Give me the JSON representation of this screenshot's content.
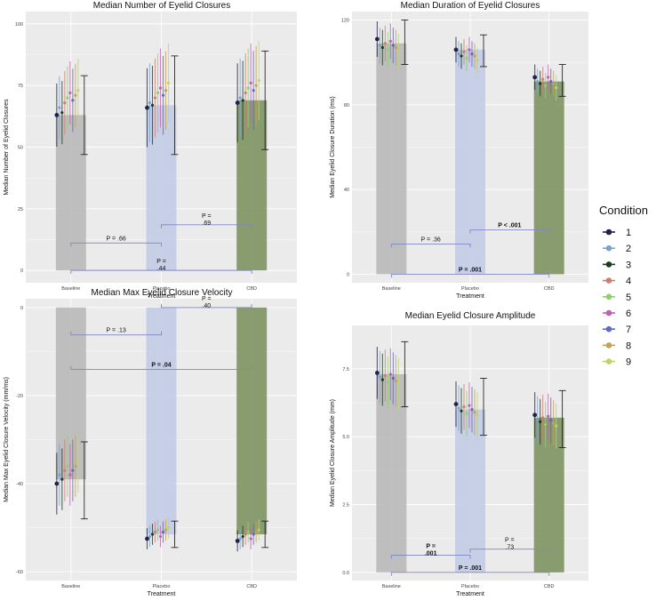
{
  "chart_data": [
    {
      "type": "bar",
      "title": "Median Number of Eyelid Closures",
      "xlabel": "Treatment",
      "ylabel": "Median Number of Eyelid Closures",
      "ylim": [
        -5,
        105
      ],
      "yticks": [
        0,
        25,
        50,
        75,
        100
      ],
      "categories": [
        "Baseline",
        "Placebo",
        "CBD"
      ],
      "values": [
        63,
        67,
        69
      ],
      "errors": [
        [
          47,
          79
        ],
        [
          47,
          87
        ],
        [
          49,
          89
        ]
      ],
      "bar_colors": [
        "#b9b9b9",
        "#c3cce6",
        "#7d9462"
      ],
      "condition_means": [
        [
          63,
          66,
          64,
          68,
          70,
          72,
          69,
          71,
          73
        ],
        [
          66,
          68,
          67,
          70,
          72,
          74,
          71,
          73,
          76
        ],
        [
          68,
          70,
          69,
          72,
          74,
          76,
          73,
          75,
          77
        ]
      ],
      "comparisons": [
        {
          "from": 0,
          "to": 1,
          "label": "P = .66",
          "bold": false,
          "level": 1
        },
        {
          "from": 1,
          "to": 2,
          "label": "P =\n.69",
          "bold": false,
          "level": 2
        },
        {
          "from": 0,
          "to": 2,
          "label": "P =\n.44",
          "bold": false,
          "level": 0
        }
      ]
    },
    {
      "type": "bar",
      "title": "Median Duration of Eyelid Closures",
      "xlabel": "Treatment",
      "ylabel": "Median Eyelid Closure Duration (ms)",
      "ylim": [
        -4,
        124
      ],
      "yticks": [
        0,
        40,
        80,
        120
      ],
      "categories": [
        "Baseline",
        "Placebo",
        "CBD"
      ],
      "values": [
        109,
        106,
        91
      ],
      "errors": [
        [
          99,
          120
        ],
        [
          98,
          113
        ],
        [
          84,
          99
        ]
      ],
      "bar_colors": [
        "#b9b9b9",
        "#c3cce6",
        "#7d9462"
      ],
      "condition_means": [
        [
          111,
          108,
          107,
          109,
          106,
          110,
          108,
          107,
          105
        ],
        [
          106,
          104,
          103,
          105,
          102,
          106,
          104,
          103,
          101
        ],
        [
          93,
          91,
          90,
          92,
          89,
          93,
          91,
          90,
          88
        ]
      ],
      "comparisons": [
        {
          "from": 0,
          "to": 1,
          "label": "P = .36",
          "bold": false,
          "level": 1
        },
        {
          "from": 1,
          "to": 2,
          "label": "P < .001",
          "bold": true,
          "level": 2
        },
        {
          "from": 0,
          "to": 2,
          "label": "P = .001",
          "bold": true,
          "level": 0
        }
      ]
    },
    {
      "type": "bar",
      "title": "Median Max Eyelid Closure Velocity",
      "xlabel": "Treatment",
      "ylabel": "Median Max Eyelid Closure Velocity (mm/ms)",
      "ylim": [
        -62,
        2
      ],
      "yticks": [
        0,
        -20,
        -40,
        -60
      ],
      "categories": [
        "Baseline",
        "Placebo",
        "CBD"
      ],
      "values": [
        -39,
        -51.5,
        -51.5
      ],
      "errors": [
        [
          -48,
          -30.5
        ],
        [
          -54.5,
          -48.5
        ],
        [
          -54.5,
          -48.5
        ]
      ],
      "bar_colors": [
        "#b9b9b9",
        "#c3cce6",
        "#7d9462"
      ],
      "condition_means": [
        [
          -40,
          -38,
          -39,
          -37,
          -36,
          -38,
          -37,
          -36,
          -35
        ],
        [
          -52.5,
          -52,
          -51.5,
          -51,
          -50.5,
          -52,
          -51,
          -50.5,
          -50
        ],
        [
          -53,
          -52.5,
          -52,
          -51.5,
          -51,
          -52.5,
          -51.5,
          -51,
          -50.5
        ]
      ],
      "comparisons": [
        {
          "from": 0,
          "to": 1,
          "label": "P = .13",
          "bold": false,
          "level": 1
        },
        {
          "from": 1,
          "to": 2,
          "label": "P =\n.40",
          "bold": false,
          "level": 2
        },
        {
          "from": 0,
          "to": 2,
          "label": "P = .04",
          "bold": true,
          "level": 0
        }
      ]
    },
    {
      "type": "bar",
      "title": "Median Eyelid Closure Amplitude",
      "xlabel": "Treatment",
      "ylabel": "Median Eyelid Closure Amplitude (mm)",
      "ylim": [
        -0.3,
        9.1
      ],
      "yticks": [
        0.0,
        2.5,
        5.0,
        7.5
      ],
      "tick_labels": [
        "0.0",
        "2.5",
        "5.0",
        "7.5"
      ],
      "categories": [
        "Baseline",
        "Placebo",
        "CBD"
      ],
      "values": [
        7.3,
        6.0,
        5.7
      ],
      "errors": [
        [
          6.1,
          8.5
        ],
        [
          5.05,
          7.15
        ],
        [
          4.6,
          6.7
        ]
      ],
      "bar_colors": [
        "#b9b9b9",
        "#c3cce6",
        "#7d9462"
      ],
      "condition_means": [
        [
          7.35,
          7.2,
          7.1,
          7.25,
          7.0,
          7.3,
          7.15,
          7.05,
          6.95
        ],
        [
          6.2,
          6.05,
          5.95,
          6.1,
          5.85,
          6.15,
          6.0,
          5.9,
          5.8
        ],
        [
          5.8,
          5.65,
          5.55,
          5.7,
          5.45,
          5.75,
          5.6,
          5.5,
          5.4
        ]
      ],
      "comparisons": [
        {
          "from": 0,
          "to": 1,
          "label": "P =\n.001",
          "bold": true,
          "level": 1
        },
        {
          "from": 1,
          "to": 2,
          "label": "P =\n.73",
          "bold": false,
          "level": 2
        },
        {
          "from": 0,
          "to": 2,
          "label": "P = .001",
          "bold": true,
          "level": 0
        }
      ]
    }
  ],
  "legend": {
    "title": "Condition",
    "position": "right",
    "items": [
      {
        "label": "1",
        "color": "#23214a"
      },
      {
        "label": "2",
        "color": "#7aa3cc"
      },
      {
        "label": "3",
        "color": "#1c3a20"
      },
      {
        "label": "4",
        "color": "#cc7f6e"
      },
      {
        "label": "5",
        "color": "#8cd26a"
      },
      {
        "label": "6",
        "color": "#c060b0"
      },
      {
        "label": "7",
        "color": "#5f6ac2"
      },
      {
        "label": "8",
        "color": "#c2a15a"
      },
      {
        "label": "9",
        "color": "#bed46a"
      }
    ]
  },
  "colors": {
    "panel_bg": "#ebebeb",
    "grid": "#ffffff",
    "bracket": "#7f86c6"
  }
}
